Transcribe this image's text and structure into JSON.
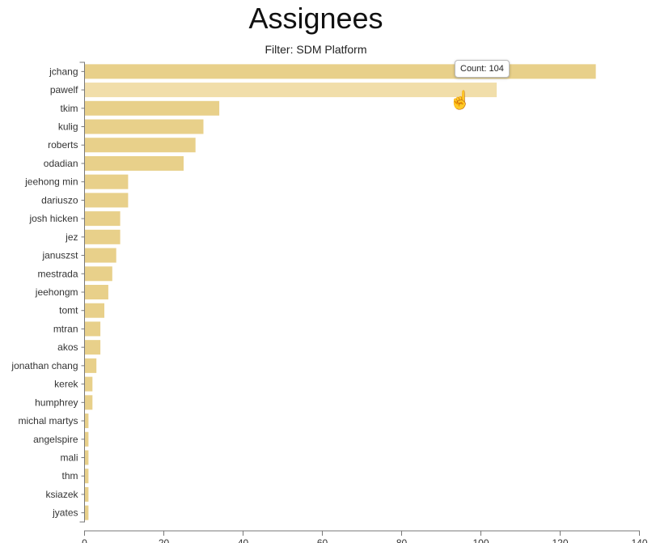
{
  "title": "Assignees",
  "subtitle": "Filter: SDM Platform",
  "tooltip": {
    "text": "Count: 104"
  },
  "colors": {
    "bar": "#e8d08a",
    "bar_hover": "#f1deaa",
    "axis": "#777777"
  },
  "chart_data": {
    "type": "bar",
    "orientation": "horizontal",
    "categories": [
      "jchang",
      "pawelf",
      "tkim",
      "kulig",
      "roberts",
      "odadian",
      "jeehong min",
      "dariuszo",
      "josh hicken",
      "jez",
      "januszst",
      "mestrada",
      "jeehongm",
      "tomt",
      "mtran",
      "akos",
      "jonathan chang",
      "kerek",
      "humphrey",
      "michal martys",
      "angelspire",
      "mali",
      "thm",
      "ksiazek",
      "jyates"
    ],
    "values": [
      129,
      104,
      34,
      30,
      28,
      25,
      11,
      11,
      9,
      9,
      8,
      7,
      6,
      5,
      4,
      4,
      3,
      2,
      2,
      1,
      1,
      1,
      1,
      1,
      1
    ],
    "xlim": [
      0,
      140
    ],
    "xticks": [
      0,
      20,
      40,
      60,
      80,
      100,
      120,
      140
    ],
    "highlighted": "pawelf",
    "grid": false
  }
}
